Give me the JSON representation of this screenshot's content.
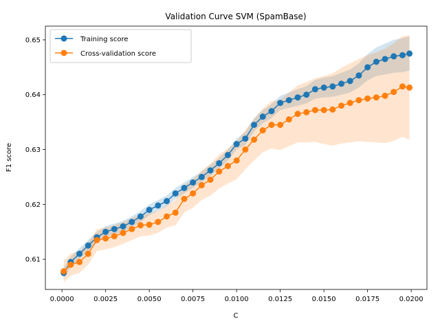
{
  "chart_data": {
    "type": "line",
    "title": "Validation Curve SVM (SpamBase)",
    "xlabel": "C",
    "ylabel": "F1 score",
    "xlim": [
      -0.00095,
      0.0209
    ],
    "ylim": [
      0.6045,
      0.6525
    ],
    "xticks": [
      0.0,
      0.0025,
      0.005,
      0.0075,
      0.01,
      0.0125,
      0.015,
      0.0175,
      0.02
    ],
    "xtick_labels": [
      "0.0000",
      "0.0025",
      "0.0050",
      "0.0075",
      "0.0100",
      "0.0125",
      "0.0150",
      "0.0175",
      "0.0200"
    ],
    "yticks": [
      0.61,
      0.62,
      0.63,
      0.64,
      0.65
    ],
    "ytick_labels": [
      "0.61",
      "0.62",
      "0.63",
      "0.64",
      "0.65"
    ],
    "grid": false,
    "legend_position": "top-left",
    "x": [
      0.0001,
      0.0005,
      0.001,
      0.0015,
      0.002,
      0.0025,
      0.003,
      0.0035,
      0.004,
      0.0045,
      0.005,
      0.0055,
      0.006,
      0.0065,
      0.007,
      0.0075,
      0.008,
      0.0085,
      0.009,
      0.0095,
      0.01,
      0.0105,
      0.011,
      0.0115,
      0.012,
      0.0125,
      0.013,
      0.0135,
      0.014,
      0.0145,
      0.015,
      0.0155,
      0.016,
      0.0165,
      0.017,
      0.0175,
      0.018,
      0.0185,
      0.019,
      0.0195,
      0.0199
    ],
    "series": [
      {
        "name": "Training score",
        "color": "#1f77b4",
        "values": [
          0.6075,
          0.6095,
          0.611,
          0.6125,
          0.614,
          0.615,
          0.6155,
          0.616,
          0.6168,
          0.6178,
          0.619,
          0.6198,
          0.6206,
          0.622,
          0.623,
          0.624,
          0.625,
          0.6262,
          0.6275,
          0.629,
          0.631,
          0.632,
          0.6345,
          0.636,
          0.637,
          0.6385,
          0.639,
          0.6395,
          0.64,
          0.641,
          0.6413,
          0.6415,
          0.642,
          0.6425,
          0.6435,
          0.645,
          0.646,
          0.6465,
          0.647,
          0.6472,
          0.6475
        ],
        "upper": [
          0.6085,
          0.6105,
          0.612,
          0.6135,
          0.615,
          0.616,
          0.6165,
          0.617,
          0.6178,
          0.6188,
          0.62,
          0.6208,
          0.6216,
          0.623,
          0.624,
          0.625,
          0.626,
          0.6272,
          0.6285,
          0.63,
          0.632,
          0.6332,
          0.6357,
          0.6372,
          0.6383,
          0.6398,
          0.6404,
          0.641,
          0.6416,
          0.6427,
          0.6431,
          0.6434,
          0.644,
          0.6446,
          0.6457,
          0.6474,
          0.6486,
          0.6493,
          0.65,
          0.6503,
          0.6506
        ],
        "lower": [
          0.6065,
          0.6085,
          0.61,
          0.6115,
          0.613,
          0.614,
          0.6145,
          0.615,
          0.6158,
          0.6168,
          0.618,
          0.6188,
          0.6196,
          0.621,
          0.622,
          0.623,
          0.624,
          0.6252,
          0.6265,
          0.628,
          0.63,
          0.6308,
          0.6333,
          0.6348,
          0.6357,
          0.6372,
          0.6376,
          0.638,
          0.6384,
          0.6393,
          0.6395,
          0.6396,
          0.64,
          0.6404,
          0.6413,
          0.6426,
          0.6434,
          0.6437,
          0.644,
          0.6441,
          0.6444
        ]
      },
      {
        "name": "Cross-validation score",
        "color": "#ff7f0e",
        "values": [
          0.6078,
          0.609,
          0.6095,
          0.611,
          0.6135,
          0.6138,
          0.6142,
          0.6148,
          0.6155,
          0.6162,
          0.6163,
          0.6168,
          0.6178,
          0.6185,
          0.621,
          0.622,
          0.6235,
          0.6245,
          0.626,
          0.627,
          0.628,
          0.63,
          0.6318,
          0.6335,
          0.6345,
          0.6345,
          0.6355,
          0.6365,
          0.6368,
          0.6372,
          0.6372,
          0.6373,
          0.638,
          0.6385,
          0.639,
          0.6393,
          0.6395,
          0.6398,
          0.6405,
          0.6415,
          0.6413
        ],
        "upper": [
          0.6098,
          0.611,
          0.6115,
          0.613,
          0.6155,
          0.6158,
          0.6162,
          0.6168,
          0.6175,
          0.6182,
          0.6183,
          0.6188,
          0.6198,
          0.6208,
          0.6235,
          0.6246,
          0.6262,
          0.6274,
          0.6291,
          0.6302,
          0.6314,
          0.6336,
          0.6356,
          0.6375,
          0.6388,
          0.6391,
          0.6404,
          0.6417,
          0.6423,
          0.643,
          0.6434,
          0.6439,
          0.6449,
          0.6457,
          0.6465,
          0.6472,
          0.6477,
          0.6484,
          0.6494,
          0.6507,
          0.6508
        ],
        "lower": [
          0.6058,
          0.607,
          0.6075,
          0.609,
          0.6115,
          0.6118,
          0.6122,
          0.6128,
          0.6135,
          0.6142,
          0.6143,
          0.6148,
          0.6158,
          0.6162,
          0.6185,
          0.6194,
          0.6208,
          0.6216,
          0.6229,
          0.6238,
          0.6246,
          0.6264,
          0.628,
          0.6295,
          0.6302,
          0.6299,
          0.6306,
          0.6313,
          0.6313,
          0.6314,
          0.631,
          0.6307,
          0.6311,
          0.6313,
          0.6315,
          0.6314,
          0.6313,
          0.6312,
          0.6316,
          0.6323,
          0.6318
        ]
      }
    ]
  }
}
